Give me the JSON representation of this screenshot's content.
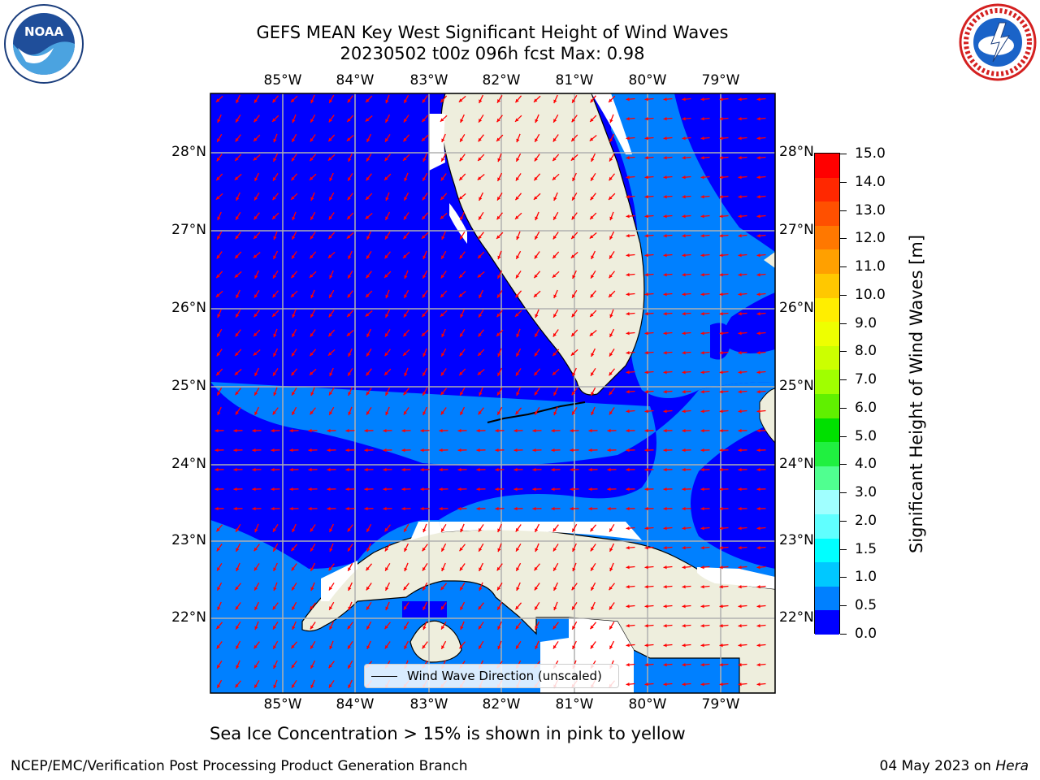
{
  "header": {
    "title_line1": "GEFS MEAN Key West Significant Height of Wind Waves",
    "title_line2": "20230502 t00z 096h fcst   Max: 0.98"
  },
  "logos": {
    "left": "NOAA",
    "left_ring_text": "NATIONAL OCEANIC AND ATMOSPHERIC ADMINISTRATION · U.S. DEPARTMENT OF COMMERCE",
    "right_ring_text": "NATIONAL WEATHER SERVICE"
  },
  "map": {
    "longitude_labels": [
      "85°W",
      "84°W",
      "83°W",
      "82°W",
      "81°W",
      "80°W",
      "79°W"
    ],
    "latitude_labels": [
      "28°N",
      "27°N",
      "26°N",
      "25°N",
      "24°N",
      "23°N",
      "22°N"
    ],
    "colors": {
      "ocean_low": "#0000ff",
      "ocean_mid": "#0080ff",
      "land": "#eeeedd",
      "arrow": "#ff0000",
      "grid": "#b0b0b0"
    },
    "legend": {
      "label": "Wind Wave Direction (unscaled)"
    }
  },
  "colorbar": {
    "label": "Significant Height of Wind Waves [m]",
    "ticks": [
      "15.0",
      "14.0",
      "13.0",
      "12.0",
      "11.0",
      "10.0",
      "9.0",
      "8.0",
      "7.0",
      "6.0",
      "5.0",
      "4.0",
      "3.0",
      "2.0",
      "1.5",
      "1.0",
      "0.5",
      "0.0"
    ],
    "colors_top_to_bottom": [
      "#ff0000",
      "#ff2800",
      "#ff5000",
      "#ff7800",
      "#ffa000",
      "#ffc800",
      "#ffee00",
      "#eeff00",
      "#ccff00",
      "#a0ff00",
      "#60f000",
      "#00e000",
      "#20f040",
      "#50ff90",
      "#a0ffff",
      "#60ffff",
      "#00ffff",
      "#00c8ff",
      "#0080ff",
      "#0000ff"
    ]
  },
  "footer": {
    "subtitle": "Sea Ice Concentration > 15% is shown in pink to yellow",
    "left": "NCEP/EMC/Verification Post Processing Product Generation Branch",
    "date": "04 May 2023 on",
    "system": "Hera"
  }
}
